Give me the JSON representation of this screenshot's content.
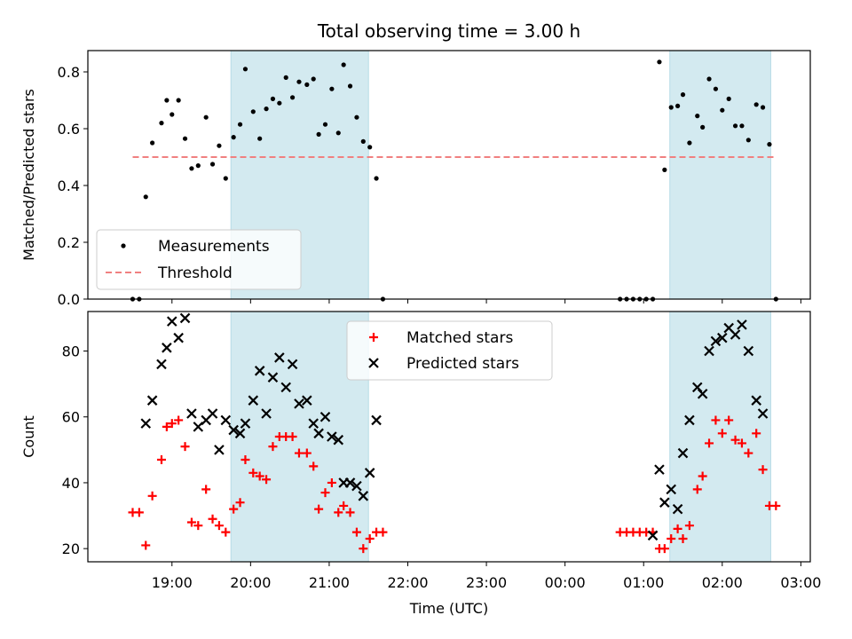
{
  "chart_data": [
    {
      "type": "scatter",
      "title": "Total observing time = 3.00 h",
      "xlabel": "",
      "ylabel": "Matched/Predicted stars",
      "ylim": [
        0,
        0.875
      ],
      "yticks": [
        "0.0",
        "0.2",
        "0.4",
        "0.6",
        "0.8"
      ],
      "xlim_hours": [
        17.93,
        27.12
      ],
      "highlight_bands": [
        {
          "start": "19:45",
          "end": "21:30",
          "color": "#d3eaf0"
        },
        {
          "start": "01:20",
          "end": "02:37",
          "color": "#d3eaf0"
        }
      ],
      "threshold": {
        "name": "Threshold",
        "y": 0.5,
        "x_start": "18:30",
        "x_end": "02:40",
        "color": "#f08080"
      },
      "legend": {
        "position": "lower-left",
        "entries": [
          "Measurements",
          "Threshold"
        ]
      },
      "series": [
        {
          "name": "Measurements",
          "color": "#000000",
          "points": [
            [
              "18:30",
              0.0
            ],
            [
              "18:35",
              0.0
            ],
            [
              "18:40",
              0.36
            ],
            [
              "18:45",
              0.55
            ],
            [
              "18:52",
              0.62
            ],
            [
              "18:56",
              0.7
            ],
            [
              "19:00",
              0.65
            ],
            [
              "19:05",
              0.7
            ],
            [
              "19:10",
              0.565
            ],
            [
              "19:15",
              0.46
            ],
            [
              "19:20",
              0.47
            ],
            [
              "19:26",
              0.64
            ],
            [
              "19:31",
              0.475
            ],
            [
              "19:36",
              0.54
            ],
            [
              "19:41",
              0.425
            ],
            [
              "19:47",
              0.57
            ],
            [
              "19:52",
              0.615
            ],
            [
              "19:56",
              0.81
            ],
            [
              "20:02",
              0.66
            ],
            [
              "20:07",
              0.565
            ],
            [
              "20:12",
              0.67
            ],
            [
              "20:17",
              0.705
            ],
            [
              "20:22",
              0.69
            ],
            [
              "20:27",
              0.78
            ],
            [
              "20:32",
              0.71
            ],
            [
              "20:37",
              0.765
            ],
            [
              "20:43",
              0.755
            ],
            [
              "20:48",
              0.775
            ],
            [
              "20:52",
              0.58
            ],
            [
              "20:57",
              0.615
            ],
            [
              "21:02",
              0.74
            ],
            [
              "21:07",
              0.585
            ],
            [
              "21:11",
              0.825
            ],
            [
              "21:16",
              0.75
            ],
            [
              "21:21",
              0.64
            ],
            [
              "21:26",
              0.555
            ],
            [
              "21:31",
              0.535
            ],
            [
              "21:36",
              0.425
            ],
            [
              "21:41",
              0.0
            ],
            [
              "00:42",
              0.0
            ],
            [
              "00:47",
              0.0
            ],
            [
              "00:52",
              0.0
            ],
            [
              "00:57",
              0.0
            ],
            [
              "01:02",
              0.0
            ],
            [
              "01:07",
              0.0
            ],
            [
              "01:12",
              0.835
            ],
            [
              "01:16",
              0.455
            ],
            [
              "01:21",
              0.675
            ],
            [
              "01:26",
              0.68
            ],
            [
              "01:30",
              0.72
            ],
            [
              "01:35",
              0.55
            ],
            [
              "01:41",
              0.645
            ],
            [
              "01:45",
              0.605
            ],
            [
              "01:50",
              0.775
            ],
            [
              "01:55",
              0.74
            ],
            [
              "02:00",
              0.665
            ],
            [
              "02:05",
              0.705
            ],
            [
              "02:10",
              0.61
            ],
            [
              "02:15",
              0.61
            ],
            [
              "02:20",
              0.56
            ],
            [
              "02:26",
              0.685
            ],
            [
              "02:31",
              0.675
            ],
            [
              "02:36",
              0.545
            ],
            [
              "02:41",
              0.0
            ]
          ]
        }
      ]
    },
    {
      "type": "scatter",
      "title": "",
      "xlabel": "Time (UTC)",
      "ylabel": "Count",
      "ylim": [
        16,
        92
      ],
      "yticks": [
        "20",
        "40",
        "60",
        "80"
      ],
      "xticks": [
        "19:00",
        "20:00",
        "21:00",
        "22:00",
        "23:00",
        "00:00",
        "01:00",
        "02:00",
        "03:00"
      ],
      "xlim_hours": [
        17.93,
        27.12
      ],
      "highlight_bands": [
        {
          "start": "19:45",
          "end": "21:30",
          "color": "#d3eaf0"
        },
        {
          "start": "01:20",
          "end": "02:37",
          "color": "#d3eaf0"
        }
      ],
      "legend": {
        "position": "top-center",
        "entries": [
          "Matched stars",
          "Predicted stars"
        ]
      },
      "series": [
        {
          "name": "Matched stars",
          "marker": "plus",
          "color": "#ff0000",
          "points": [
            [
              "18:30",
              31
            ],
            [
              "18:35",
              31
            ],
            [
              "18:40",
              21
            ],
            [
              "18:45",
              36
            ],
            [
              "18:52",
              47
            ],
            [
              "18:56",
              57
            ],
            [
              "19:00",
              58
            ],
            [
              "19:05",
              59
            ],
            [
              "19:10",
              51
            ],
            [
              "19:15",
              28
            ],
            [
              "19:20",
              27
            ],
            [
              "19:26",
              38
            ],
            [
              "19:31",
              29
            ],
            [
              "19:36",
              27
            ],
            [
              "19:41",
              25
            ],
            [
              "19:47",
              32
            ],
            [
              "19:52",
              34
            ],
            [
              "19:56",
              47
            ],
            [
              "20:02",
              43
            ],
            [
              "20:07",
              42
            ],
            [
              "20:12",
              41
            ],
            [
              "20:17",
              51
            ],
            [
              "20:22",
              54
            ],
            [
              "20:27",
              54
            ],
            [
              "20:32",
              54
            ],
            [
              "20:37",
              49
            ],
            [
              "20:43",
              49
            ],
            [
              "20:48",
              45
            ],
            [
              "20:52",
              32
            ],
            [
              "20:57",
              37
            ],
            [
              "21:02",
              40
            ],
            [
              "21:07",
              31
            ],
            [
              "21:11",
              33
            ],
            [
              "21:16",
              31
            ],
            [
              "21:21",
              25
            ],
            [
              "21:26",
              20
            ],
            [
              "21:31",
              23
            ],
            [
              "21:36",
              25
            ],
            [
              "21:41",
              25
            ],
            [
              "00:42",
              25
            ],
            [
              "00:47",
              25
            ],
            [
              "00:52",
              25
            ],
            [
              "00:57",
              25
            ],
            [
              "01:02",
              25
            ],
            [
              "01:07",
              25
            ],
            [
              "01:12",
              20
            ],
            [
              "01:16",
              20
            ],
            [
              "01:21",
              23
            ],
            [
              "01:26",
              26
            ],
            [
              "01:30",
              23
            ],
            [
              "01:35",
              27
            ],
            [
              "01:41",
              38
            ],
            [
              "01:45",
              42
            ],
            [
              "01:50",
              52
            ],
            [
              "01:55",
              59
            ],
            [
              "02:00",
              55
            ],
            [
              "02:05",
              59
            ],
            [
              "02:10",
              53
            ],
            [
              "02:15",
              52
            ],
            [
              "02:20",
              49
            ],
            [
              "02:26",
              55
            ],
            [
              "02:31",
              44
            ],
            [
              "02:36",
              33
            ],
            [
              "02:41",
              33
            ]
          ]
        },
        {
          "name": "Predicted stars",
          "marker": "x",
          "color": "#000000",
          "points": [
            [
              "18:40",
              58
            ],
            [
              "18:45",
              65
            ],
            [
              "18:52",
              76
            ],
            [
              "18:56",
              81
            ],
            [
              "19:00",
              89
            ],
            [
              "19:05",
              84
            ],
            [
              "19:10",
              90
            ],
            [
              "19:15",
              61
            ],
            [
              "19:20",
              57
            ],
            [
              "19:26",
              59
            ],
            [
              "19:31",
              61
            ],
            [
              "19:36",
              50
            ],
            [
              "19:41",
              59
            ],
            [
              "19:47",
              56
            ],
            [
              "19:52",
              55
            ],
            [
              "19:56",
              58
            ],
            [
              "20:02",
              65
            ],
            [
              "20:07",
              74
            ],
            [
              "20:12",
              61
            ],
            [
              "20:17",
              72
            ],
            [
              "20:22",
              78
            ],
            [
              "20:27",
              69
            ],
            [
              "20:32",
              76
            ],
            [
              "20:37",
              64
            ],
            [
              "20:43",
              65
            ],
            [
              "20:48",
              58
            ],
            [
              "20:52",
              55
            ],
            [
              "20:57",
              60
            ],
            [
              "21:02",
              54
            ],
            [
              "21:07",
              53
            ],
            [
              "21:11",
              40
            ],
            [
              "21:16",
              40
            ],
            [
              "21:21",
              39
            ],
            [
              "21:26",
              36
            ],
            [
              "21:31",
              43
            ],
            [
              "21:36",
              59
            ],
            [
              "01:07",
              24
            ],
            [
              "01:12",
              44
            ],
            [
              "01:16",
              34
            ],
            [
              "01:21",
              38
            ],
            [
              "01:26",
              32
            ],
            [
              "01:30",
              49
            ],
            [
              "01:35",
              59
            ],
            [
              "01:41",
              69
            ],
            [
              "01:45",
              67
            ],
            [
              "01:50",
              80
            ],
            [
              "01:55",
              83
            ],
            [
              "02:00",
              84
            ],
            [
              "02:05",
              87
            ],
            [
              "02:10",
              85
            ],
            [
              "02:15",
              88
            ],
            [
              "02:20",
              80
            ],
            [
              "02:26",
              65
            ],
            [
              "02:31",
              61
            ]
          ]
        }
      ]
    }
  ]
}
